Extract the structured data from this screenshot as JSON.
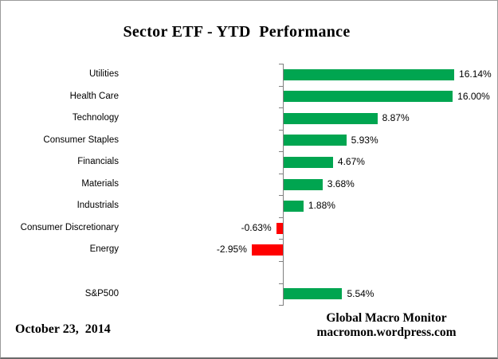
{
  "title": "Sector ETF - YTD  Performance",
  "footer": {
    "date": "October 23,  2014",
    "attribution_line1": "Global Macro Monitor",
    "attribution_line2": "macromon.wordpress.com"
  },
  "chart_data": {
    "type": "bar",
    "orientation": "horizontal",
    "title": "Sector ETF - YTD  Performance",
    "value_unit": "%",
    "categories": [
      "Utilities",
      "Health Care",
      "Technology",
      "Consumer Staples",
      "Financials",
      "Materials",
      "Industrials",
      "Consumer Discretionary",
      "Energy",
      "S&P500"
    ],
    "values": [
      16.14,
      16.0,
      8.87,
      5.93,
      4.67,
      3.68,
      1.88,
      -0.63,
      -2.95,
      5.54
    ],
    "rows": [
      {
        "label": "Utilities",
        "value": 16.14,
        "display": "16.14%"
      },
      {
        "label": "Health Care",
        "value": 16.0,
        "display": "16.00%"
      },
      {
        "label": "Technology",
        "value": 8.87,
        "display": "8.87%"
      },
      {
        "label": "Consumer Staples",
        "value": 5.93,
        "display": "5.93%"
      },
      {
        "label": "Financials",
        "value": 4.67,
        "display": "4.67%"
      },
      {
        "label": "Materials",
        "value": 3.68,
        "display": "3.68%"
      },
      {
        "label": "Industrials",
        "value": 1.88,
        "display": "1.88%"
      },
      {
        "label": "Consumer Discretionary",
        "value": -0.63,
        "display": "-0.63%"
      },
      {
        "label": "Energy",
        "value": -2.95,
        "display": "-2.95%"
      },
      {
        "label": "",
        "value": null,
        "display": ""
      },
      {
        "label": "S&P500",
        "value": 5.54,
        "display": "5.54%"
      }
    ],
    "xlim": [
      -4,
      18
    ],
    "gridlines": false,
    "value_axis_visible": false,
    "data_labels": "outside-end",
    "colors": {
      "positive_bar": "#00A550",
      "negative_bar": "#FF0000",
      "axis": "#808080",
      "text": "#000000",
      "background": "#FFFFFF"
    }
  }
}
